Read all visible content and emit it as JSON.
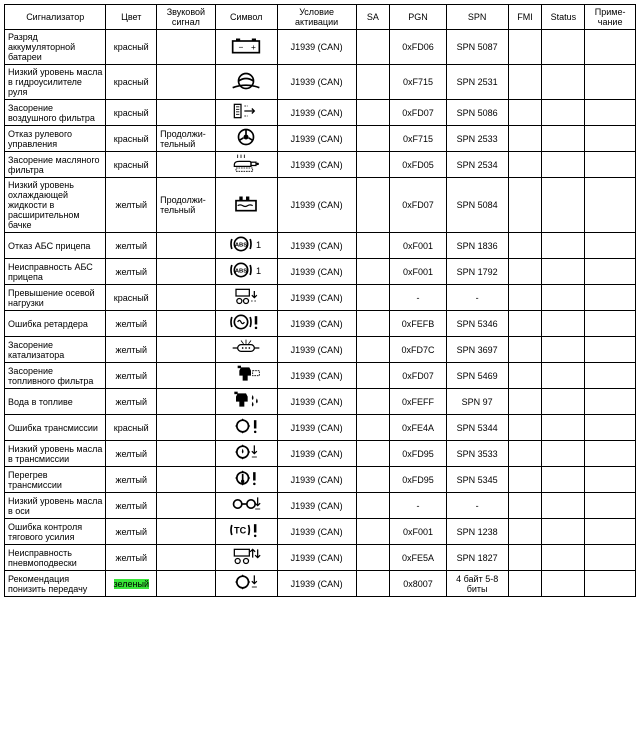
{
  "headers": {
    "signal": "Сигнализатор",
    "color": "Цвет",
    "sound": "Звуковой сигнал",
    "symbol": "Символ",
    "activation": "Условие активации",
    "sa": "SA",
    "pgn": "PGN",
    "spn": "SPN",
    "fmi": "FMI",
    "status": "Status",
    "note": "Приме-\nчание"
  },
  "rows": [
    {
      "signal": "Разряд аккумуляторной батареи",
      "color": "красный",
      "sound": "",
      "symbol": "battery",
      "activation": "J1939 (CAN)",
      "sa": "",
      "pgn": "0xFD06",
      "spn": "SPN 5087",
      "fmi": "",
      "status": "",
      "note": ""
    },
    {
      "signal": "Низкий уровень масла в гидроусилителе руля",
      "color": "красный",
      "sound": "",
      "symbol": "steering-oil",
      "activation": "J1939 (CAN)",
      "sa": "",
      "pgn": "0xF715",
      "spn": "SPN 2531",
      "fmi": "",
      "status": "",
      "note": ""
    },
    {
      "signal": "Засорение воздушного фильтра",
      "color": "красный",
      "sound": "",
      "symbol": "air-filter",
      "activation": "J1939 (CAN)",
      "sa": "",
      "pgn": "0xFD07",
      "spn": "SPN 5086",
      "fmi": "",
      "status": "",
      "note": ""
    },
    {
      "signal": "Отказ рулевого управления",
      "color": "красный",
      "sound": "Продолжи-тельный",
      "symbol": "steering-fail",
      "activation": "J1939 (CAN)",
      "sa": "",
      "pgn": "0xF715",
      "spn": "SPN 2533",
      "fmi": "",
      "status": "",
      "note": ""
    },
    {
      "signal": "Засорение масляного фильтра",
      "color": "красный",
      "sound": "",
      "symbol": "oil-filter",
      "activation": "J1939 (CAN)",
      "sa": "",
      "pgn": "0xFD05",
      "spn": "SPN 2534",
      "fmi": "",
      "status": "",
      "note": ""
    },
    {
      "signal": "Низкий уровень охлаждающей жидкости в расширительном бачке",
      "color": "желтый",
      "sound": "Продолжи-тельный",
      "symbol": "coolant-tank",
      "activation": "J1939 (CAN)",
      "sa": "",
      "pgn": "0xFD07",
      "spn": "SPN 5084",
      "fmi": "",
      "status": "",
      "note": ""
    },
    {
      "signal": "Отказ АБС прицепа",
      "color": "желтый",
      "sound": "",
      "symbol": "abs-trailer-1",
      "activation": "J1939 (CAN)",
      "sa": "",
      "pgn": "0xF001",
      "spn": "SPN 1836",
      "fmi": "",
      "status": "",
      "note": ""
    },
    {
      "signal": "Неисправность АБС прицепа",
      "color": "желтый",
      "sound": "",
      "symbol": "abs-trailer-2",
      "activation": "J1939 (CAN)",
      "sa": "",
      "pgn": "0xF001",
      "spn": "SPN 1792",
      "fmi": "",
      "status": "",
      "note": ""
    },
    {
      "signal": "Превышение осевой нагрузки",
      "color": "красный",
      "sound": "",
      "symbol": "axle-load",
      "activation": "J1939 (CAN)",
      "sa": "",
      "pgn": "-",
      "spn": "-",
      "fmi": "",
      "status": "",
      "note": ""
    },
    {
      "signal": "Ошибка ретардера",
      "color": "желтый",
      "sound": "",
      "symbol": "retarder",
      "activation": "J1939 (CAN)",
      "sa": "",
      "pgn": "0xFEFB",
      "spn": "SPN 5346",
      "fmi": "",
      "status": "",
      "note": ""
    },
    {
      "signal": "Засорение катализатора",
      "color": "желтый",
      "sound": "",
      "symbol": "catalyst",
      "activation": "J1939 (CAN)",
      "sa": "",
      "pgn": "0xFD7C",
      "spn": "SPN 3697",
      "fmi": "",
      "status": "",
      "note": ""
    },
    {
      "signal": "Засорение топливного фильтра",
      "color": "желтый",
      "sound": "",
      "symbol": "fuel-filter",
      "activation": "J1939 (CAN)",
      "sa": "",
      "pgn": "0xFD07",
      "spn": "SPN 5469",
      "fmi": "",
      "status": "",
      "note": ""
    },
    {
      "signal": "Вода в топливе",
      "color": "желтый",
      "sound": "",
      "symbol": "water-fuel",
      "activation": "J1939 (CAN)",
      "sa": "",
      "pgn": "0xFEFF",
      "spn": "SPN 97",
      "fmi": "",
      "status": "",
      "note": ""
    },
    {
      "signal": "Ошибка трансмиссии",
      "color": "красный",
      "sound": "",
      "symbol": "trans-error",
      "activation": "J1939 (CAN)",
      "sa": "",
      "pgn": "0xFE4A",
      "spn": "SPN 5344",
      "fmi": "",
      "status": "",
      "note": ""
    },
    {
      "signal": "Низкий уровень масла в трансмиссии",
      "color": "желтый",
      "sound": "",
      "symbol": "trans-oil-low",
      "activation": "J1939 (CAN)",
      "sa": "",
      "pgn": "0xFD95",
      "spn": "SPN 3533",
      "fmi": "",
      "status": "",
      "note": ""
    },
    {
      "signal": "Перегрев трансмиссии",
      "color": "желтый",
      "sound": "",
      "symbol": "trans-hot",
      "activation": "J1939 (CAN)",
      "sa": "",
      "pgn": "0xFD95",
      "spn": "SPN 5345",
      "fmi": "",
      "status": "",
      "note": ""
    },
    {
      "signal": "Низкий уровень масла в оси",
      "color": "желтый",
      "sound": "",
      "symbol": "axle-oil",
      "activation": "J1939 (CAN)",
      "sa": "",
      "pgn": "-",
      "spn": "-",
      "fmi": "",
      "status": "",
      "note": ""
    },
    {
      "signal": "Ошибка контроля тягового усилия",
      "color": "желтый",
      "sound": "",
      "symbol": "traction",
      "activation": "J1939 (CAN)",
      "sa": "",
      "pgn": "0xF001",
      "spn": "SPN 1238",
      "fmi": "",
      "status": "",
      "note": ""
    },
    {
      "signal": "Неисправность пневмоподвески",
      "color": "желтый",
      "sound": "",
      "symbol": "air-susp",
      "activation": "J1939 (CAN)",
      "sa": "",
      "pgn": "0xFE5A",
      "spn": "SPN 1827",
      "fmi": "",
      "status": "",
      "note": ""
    },
    {
      "signal": "Рекомендация понизить передачу",
      "color": "зеленый",
      "color_highlight": true,
      "sound": "",
      "symbol": "gear-down",
      "activation": "J1939 (CAN)",
      "sa": "",
      "pgn": "0x8007",
      "spn": "4 байт 5-8 биты",
      "fmi": "",
      "status": "",
      "note": ""
    }
  ],
  "symbol_svgs": {
    "battery": "<svg viewBox='0 0 40 24' width='34' height='20'><rect x='4' y='6' width='32' height='14' fill='none' stroke='#000' stroke-width='2'/><rect x='8' y='3' width='5' height='3' fill='#000'/><rect x='27' y='3' width='5' height='3' fill='#000'/><text x='11' y='17' font-size='10'>−</text><text x='26' y='17' font-size='10'>+</text></svg>",
    "steering-oil": "<svg viewBox='0 0 40 24' width='34' height='20'><circle cx='20' cy='12' r='9' fill='none' stroke='#000' stroke-width='2'/><path d='M11 12 Q20 6 29 12' fill='none' stroke='#000' stroke-width='2'/><path d='M4 20 Q20 14 36 20' fill='none' stroke='#000' stroke-width='2'/></svg>",
    "air-filter": "<svg viewBox='0 0 40 24' width='34' height='20'><rect x='6' y='4' width='8' height='16' fill='none' stroke='#000' stroke-width='1.5'/><line x1='8' y1='7' x2='12' y2='7' stroke='#000'/><line x1='8' y1='10' x2='12' y2='10' stroke='#000'/><line x1='8' y1='13' x2='12' y2='13' stroke='#000'/><line x1='8' y1='16' x2='12' y2='16' stroke='#000'/><path d='M18 12 L30 12 M27 9 L30 12 L27 15' fill='none' stroke='#000' stroke-width='1.5'/><path d='M18 6 L22 6 M18 18 L22 18' stroke='#000' stroke-dasharray='2 1'/></svg>",
    "steering-fail": "<svg viewBox='0 0 40 24' width='34' height='20'><circle cx='20' cy='12' r='9' fill='none' stroke='#000' stroke-width='2'/><circle cx='20' cy='12' r='3' fill='#000'/><line x1='20' y1='3' x2='20' y2='9' stroke='#000' stroke-width='2'/><line x1='12' y1='16' x2='17' y2='13' stroke='#000' stroke-width='2'/><line x1='28' y1='16' x2='23' y2='13' stroke='#000' stroke-width='2'/></svg>",
    "oil-filter": "<svg viewBox='0 0 40 24' width='34' height='20'><path d='M6 14 Q6 10 12 10 L24 10 Q26 10 26 12 L26 16 L6 16 Z' fill='none' stroke='#000' stroke-width='1.5'/><rect x='26' y='11' width='6' height='4' fill='none' stroke='#000' stroke-width='1.5'/><circle cx='34' cy='13' r='1.5' fill='#000'/><path d='M10 6 L10 2 M14 6 L14 2 M18 6 L18 2' stroke='#000'/><rect x='8' y='18' width='20' height='4' fill='none' stroke='#000' stroke-dasharray='2 1'/></svg>",
    "coolant-tank": "<svg viewBox='0 0 40 24' width='34' height='20'><rect x='8' y='8' width='24' height='12' fill='none' stroke='#000' stroke-width='2'/><path d='M10 14 Q13 12 16 14 T22 14 T28 14' fill='none' stroke='#000' stroke-width='1.5'/><rect x='12' y='3' width='4' height='5' fill='#000'/><rect x='20' y='3' width='4' height='5' fill='#000'/></svg>",
    "abs-trailer-1": "<svg viewBox='0 0 40 24' width='34' height='20'><circle cx='14' cy='12' r='8' fill='none' stroke='#000' stroke-width='2'/><text x='14' y='15' font-size='7' text-anchor='middle' font-weight='bold'>ABS</text><path d='M3 6 Q1 12 3 18' fill='none' stroke='#000' stroke-width='2'/><path d='M25 6 Q27 12 25 18' fill='none' stroke='#000' stroke-width='2'/><text x='32' y='17' font-size='11'>1</text></svg>",
    "abs-trailer-2": "<svg viewBox='0 0 40 24' width='34' height='20'><circle cx='14' cy='12' r='8' fill='none' stroke='#000' stroke-width='2'/><text x='14' y='15' font-size='7' text-anchor='middle' font-weight='bold'>ABS</text><path d='M3 6 Q1 12 3 18' fill='none' stroke='#000' stroke-width='2'/><path d='M25 6 Q27 12 25 18' fill='none' stroke='#000' stroke-width='2'/><text x='32' y='17' font-size='11'>1</text></svg>",
    "axle-load": "<svg viewBox='0 0 40 24' width='34' height='20'><rect x='8' y='4' width='16' height='8' fill='none' stroke='#000' stroke-width='1.5'/><circle cx='12' cy='18' r='3' fill='none' stroke='#000' stroke-width='1.5'/><circle cx='20' cy='18' r='3' fill='none' stroke='#000' stroke-width='1.5'/><path d='M30 6 L30 14 M27 11 L30 14 L33 11' fill='none' stroke='#000' stroke-width='1.5'/><line x1='26' y1='18' x2='34' y2='18' stroke='#000' stroke-dasharray='2'/></svg>",
    "retarder": "<svg viewBox='0 0 40 24' width='34' height='20'><circle cx='14' cy='12' r='8' fill='none' stroke='#000' stroke-width='2'/><path d='M10 12 Q12 8 14 12 T18 12' fill='none' stroke='#000' stroke-width='1.5'/><path d='M3 6 Q1 12 3 18' fill='none' stroke='#000' stroke-width='2'/><path d='M25 6 Q27 12 25 18' fill='none' stroke='#000' stroke-width='2'/><line x1='32' y1='5' x2='32' y2='15' stroke='#000' stroke-width='3'/><circle cx='32' cy='19' r='1.5' fill='#000'/></svg>",
    "catalyst": "<svg viewBox='0 0 40 24' width='34' height='20'><rect x='10' y='8' width='20' height='8' rx='4' fill='none' stroke='#000' stroke-width='1.5'/><line x1='4' y1='12' x2='10' y2='12' stroke='#000' stroke-width='1.5'/><line x1='30' y1='12' x2='36' y2='12' stroke='#000' stroke-width='1.5'/><circle cx='16' cy='12' r='1' fill='#000'/><circle cx='20' cy='12' r='1' fill='#000'/><circle cx='24' cy='12' r='1' fill='#000'/><line x1='14' y1='3' x2='17' y2='7' stroke='#000'/><line x1='20' y1='2' x2='20' y2='7' stroke='#000'/><line x1='26' y1='3' x2='23' y2='7' stroke='#000'/></svg>",
    "fuel-filter": "<svg viewBox='0 0 40 24' width='34' height='20'><path d='M14 4 L24 4 L26 8 L26 14 L22 14 L22 20 L16 20 L16 14 L12 14 L12 8 Z' fill='#000'/><rect x='10' y='2' width='4' height='3' fill='#000'/><rect x='28' y='8' width='8' height='6' fill='none' stroke='#000' stroke-dasharray='2 1'/></svg>",
    "water-fuel": "<svg viewBox='0 0 40 24' width='34' height='20'><path d='M10 4 L20 4 L22 8 L22 14 L18 14 L18 20 L12 20 L12 14 L8 14 L8 8 Z' fill='#000'/><rect x='6' y='2' width='4' height='3' fill='#000'/><path d='M28 6 Q26 10 28 12 Q30 10 28 6 Z' fill='#000'/><path d='M33 10 Q31 14 33 16 Q35 14 33 10 Z' fill='#000'/><path d='M28 14 Q26 18 28 20 Q30 18 28 14 Z' fill='#000'/></svg>",
    "trans-error": "<svg viewBox='0 0 40 24' width='34' height='20'><circle cx='16' cy='12' r='7' fill='none' stroke='#000' stroke-width='2'/><path d='M16 3 L18 5 L14 5 Z M16 21 L18 19 L14 19 Z M7 12 L9 10 L9 14 Z M25 12 L23 10 L23 14 Z' fill='#000'/><line x1='31' y1='5' x2='31' y2='15' stroke='#000' stroke-width='3'/><circle cx='31' cy='19' r='1.5' fill='#000'/></svg>",
    "trans-oil-low": "<svg viewBox='0 0 40 24' width='34' height='20'><circle cx='16' cy='12' r='7' fill='none' stroke='#000' stroke-width='2'/><path d='M16 3 L18 5 L14 5 Z M16 21 L18 19 L14 19 Z M7 12 L9 10 L9 14 Z M25 12 L23 10 L23 14 Z' fill='#000'/><path d='M16 8 Q14 12 16 14 Q18 12 16 8 Z' fill='#000'/><path d='M30 4 L30 14 M27 11 L30 14 L33 11' fill='none' stroke='#000' stroke-width='1.5'/><line x1='27' y1='18' x2='33' y2='18' stroke='#000'/></svg>",
    "trans-hot": "<svg viewBox='0 0 40 24' width='34' height='20'><circle cx='16' cy='12' r='7' fill='none' stroke='#000' stroke-width='2'/><path d='M16 3 L18 5 L14 5 Z M16 21 L18 19 L14 19 Z M7 12 L9 10 L9 14 Z M25 12 L23 10 L23 14 Z' fill='#000'/><line x1='16' y1='7' x2='16' y2='15' stroke='#000' stroke-width='2'/><circle cx='16' cy='16' r='2' fill='#000'/><line x1='30' y1='5' x2='30' y2='15' stroke='#000' stroke-width='3'/><circle cx='30' cy='19' r='1.5' fill='#000'/></svg>",
    "axle-oil": "<svg viewBox='0 0 40 24' width='34' height='20'><circle cx='10' cy='12' r='5' fill='none' stroke='#000' stroke-width='2'/><circle cx='26' cy='12' r='5' fill='none' stroke='#000' stroke-width='2'/><line x1='15' y1='12' x2='21' y2='12' stroke='#000' stroke-width='2'/><path d='M34 4 L34 14 M31 11 L34 14 L37 11' fill='none' stroke='#000' stroke-width='1.5'/><line x1='31' y1='18' x2='37' y2='18' stroke='#000'/></svg>",
    "traction": "<svg viewBox='0 0 40 24' width='34' height='20'><text x='13' y='16' font-size='11' font-weight='bold' text-anchor='middle'>TC</text><path d='M3 6 Q1 12 3 18' fill='none' stroke='#000' stroke-width='2'/><path d='M23 6 Q25 12 23 18' fill='none' stroke='#000' stroke-width='2'/><line x1='31' y1='5' x2='31' y2='15' stroke='#000' stroke-width='3'/><circle cx='31' cy='19' r='1.5' fill='#000'/></svg>",
    "air-susp": "<svg viewBox='0 0 40 24' width='34' height='20'><rect x='6' y='4' width='18' height='8' fill='none' stroke='#000' stroke-width='1.5'/><circle cx='10' cy='18' r='3' fill='none' stroke='#000' stroke-width='1.5'/><circle cx='20' cy='18' r='3' fill='none' stroke='#000' stroke-width='1.5'/><path d='M28 14 L28 4 M25 7 L28 4 L31 7' fill='none' stroke='#000' stroke-width='1.5'/><path d='M34 4 L34 14 M31 11 L34 14 L37 11' fill='none' stroke='#000' stroke-width='1.5'/></svg>",
    "gear-down": "<svg viewBox='0 0 40 24' width='34' height='20'><circle cx='16' cy='12' r='7' fill='none' stroke='#000' stroke-width='2'/><path d='M16 3 L18 5 L14 5 Z M16 21 L18 19 L14 19 Z M7 12 L9 10 L9 14 Z M25 12 L23 10 L23 14 Z' fill='#000'/><path d='M30 4 L30 14 M27 11 L30 14 L33 11' fill='none' stroke='#000' stroke-width='1.5'/><line x1='27' y1='18' x2='33' y2='18' stroke='#000'/></svg>"
  }
}
